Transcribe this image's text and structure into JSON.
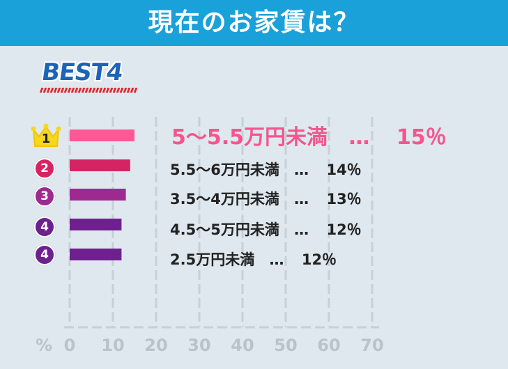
{
  "title": "現在のお家賃は？",
  "best_label": "BEST4",
  "colors": {
    "header": "#1aa1d9",
    "background": "#dfe8ee",
    "bar1": "#ff5896",
    "bar2": "#d42463",
    "bar3": "#9c2a90",
    "bar4": "#6e208f",
    "crown": "#f7d81c",
    "rank_top_text": "#f5558f"
  },
  "chart_data": {
    "type": "bar",
    "orientation": "horizontal",
    "x_unit": "%",
    "xlim": [
      0,
      70
    ],
    "x_ticks": [
      "0",
      "10",
      "20",
      "30",
      "40",
      "50",
      "60",
      "70"
    ],
    "grid": true,
    "items": [
      {
        "rank": "1",
        "label": "5～5.5万円未満",
        "sep": "…",
        "value": 15,
        "value_text": "15％",
        "icon": "crown-icon"
      },
      {
        "rank": "2",
        "label": "5.5～6万円未満",
        "sep": "…",
        "value": 14,
        "value_text": "14％"
      },
      {
        "rank": "3",
        "label": "3.5～4万円未満",
        "sep": "…",
        "value": 13,
        "value_text": "13％"
      },
      {
        "rank": "4",
        "label": "4.5～5万円未満",
        "sep": "…",
        "value": 12,
        "value_text": "12％"
      },
      {
        "rank": "4",
        "label": "2.5万円未満",
        "sep": "…",
        "value": 12,
        "value_text": "12％"
      }
    ]
  }
}
